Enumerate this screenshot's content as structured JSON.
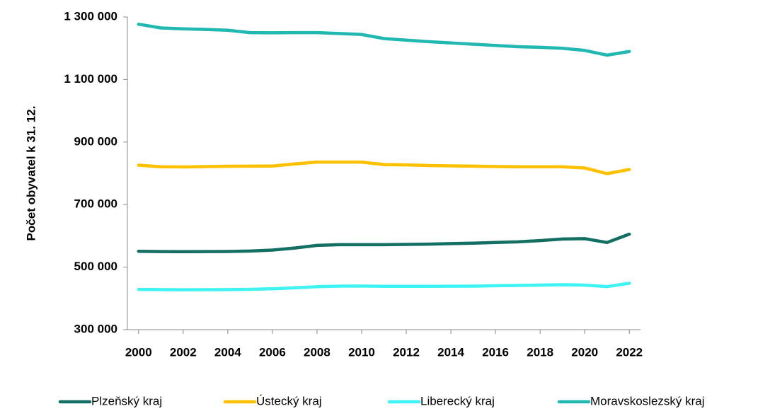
{
  "chart_data": {
    "type": "line",
    "ylabel": "Počet obyvatel k 31. 12.",
    "x": [
      2000,
      2001,
      2002,
      2003,
      2004,
      2005,
      2006,
      2007,
      2008,
      2009,
      2010,
      2011,
      2012,
      2013,
      2014,
      2015,
      2016,
      2017,
      2018,
      2019,
      2020,
      2021,
      2022
    ],
    "xlim": [
      1999.5,
      2022.5
    ],
    "xticks": [
      2000,
      2002,
      2004,
      2006,
      2008,
      2010,
      2012,
      2014,
      2016,
      2018,
      2020,
      2022
    ],
    "ylim": [
      300000,
      1300000
    ],
    "yticks": [
      {
        "value": 300000,
        "label": "300 000"
      },
      {
        "value": 500000,
        "label": "500 000"
      },
      {
        "value": 700000,
        "label": "700 000"
      },
      {
        "value": 900000,
        "label": "900 000"
      },
      {
        "value": 1100000,
        "label": "1 100 000"
      },
      {
        "value": 1300000,
        "label": "1 300 000"
      }
    ],
    "legend": "bottom",
    "series": [
      {
        "name": "Plzeňský kraj",
        "color": "#136f63",
        "values": [
          550700,
          549600,
          549400,
          549600,
          549900,
          551500,
          554500,
          561100,
          569600,
          571800,
          571900,
          571700,
          572700,
          573500,
          575100,
          576600,
          578700,
          580800,
          584700,
          589900,
          591000,
          578700,
          605400
        ]
      },
      {
        "name": "Ústecký kraj",
        "color": "#ffc000",
        "values": [
          826000,
          821000,
          820500,
          821500,
          822500,
          823000,
          823200,
          830000,
          835800,
          836000,
          836000,
          828000,
          826800,
          825000,
          823800,
          823000,
          821700,
          821000,
          821000,
          820800,
          817000,
          798900,
          812300
        ]
      },
      {
        "name": "Liberecký kraj",
        "color": "#3ff3f3",
        "values": [
          428700,
          428000,
          427600,
          427800,
          428000,
          429000,
          430800,
          433900,
          437300,
          439000,
          439500,
          438600,
          438600,
          438600,
          438900,
          439000,
          440500,
          441300,
          442400,
          443700,
          442400,
          437600,
          448500
        ]
      },
      {
        "name": "Moravskoslezský kraj",
        "color": "#20b8b0",
        "values": [
          1277000,
          1265000,
          1262000,
          1260000,
          1257500,
          1250000,
          1249300,
          1250000,
          1249900,
          1247000,
          1244000,
          1231000,
          1226000,
          1221000,
          1217000,
          1213000,
          1209000,
          1205000,
          1203000,
          1200000,
          1193000,
          1177900,
          1189700
        ]
      }
    ]
  }
}
